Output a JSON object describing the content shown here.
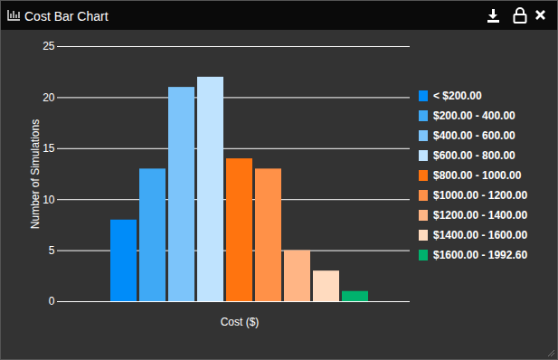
{
  "chart_data": {
    "type": "bar",
    "title": "Cost Bar Chart",
    "x_label": "Cost ($)",
    "y_label": "Number of Simulations",
    "categories": [
      "< $200.00",
      "$200.00 - 400.00",
      "$400.00 - 600.00",
      "$600.00 - 800.00",
      "$800.00 - 1000.00",
      "$1000.00 - 1200.00",
      "$1200.00 - 1400.00",
      "$1400.00 - 1600.00",
      "$1600.00 - 1992.60"
    ],
    "values": [
      8,
      13,
      21,
      22,
      14,
      13,
      5,
      3,
      1
    ],
    "colors": [
      "#008cf9",
      "#3fa9f5",
      "#7cc4fa",
      "#bfe3fe",
      "#ff740f",
      "#ff9148",
      "#ffb585",
      "#ffdbbf",
      "#00b26d"
    ],
    "ylim": [
      0,
      25
    ],
    "yticks": [
      0,
      5,
      10,
      15,
      20,
      25
    ],
    "grid": true,
    "legend": "right",
    "tick_labels": "y"
  }
}
